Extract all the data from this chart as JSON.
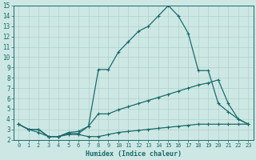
{
  "xlabel": "Humidex (Indice chaleur)",
  "xlim": [
    -0.5,
    23.5
  ],
  "ylim": [
    2,
    15
  ],
  "yticks": [
    2,
    3,
    4,
    5,
    6,
    7,
    8,
    9,
    10,
    11,
    12,
    13,
    14,
    15
  ],
  "xticks": [
    0,
    1,
    2,
    3,
    4,
    5,
    6,
    7,
    8,
    9,
    10,
    11,
    12,
    13,
    14,
    15,
    16,
    17,
    18,
    19,
    20,
    21,
    22,
    23
  ],
  "bg_color": "#cde8e4",
  "grid_color": "#b0d0cc",
  "line_color": "#1a6b6b",
  "line1_x": [
    0,
    1,
    2,
    3,
    4,
    5,
    6,
    7,
    8,
    9,
    10,
    11,
    12,
    13,
    14,
    15,
    16,
    17,
    18,
    19,
    20,
    21,
    22,
    23
  ],
  "line1_y": [
    3.5,
    3.0,
    3.0,
    2.3,
    2.3,
    2.7,
    2.8,
    3.3,
    8.8,
    8.8,
    10.5,
    11.5,
    12.5,
    13.0,
    14.0,
    15.0,
    14.0,
    12.3,
    8.7,
    8.7,
    5.5,
    4.7,
    4.0,
    3.5
  ],
  "line2_x": [
    0,
    1,
    2,
    3,
    4,
    5,
    6,
    7,
    8,
    9,
    10,
    11,
    12,
    13,
    14,
    15,
    16,
    17,
    18,
    19,
    20,
    21,
    22,
    23
  ],
  "line2_y": [
    3.5,
    3.0,
    3.0,
    2.3,
    2.3,
    2.6,
    2.6,
    3.3,
    4.5,
    4.5,
    4.9,
    5.2,
    5.5,
    5.8,
    6.1,
    6.4,
    6.7,
    7.0,
    7.3,
    7.5,
    7.8,
    5.5,
    4.0,
    3.5
  ],
  "line3_x": [
    0,
    1,
    2,
    3,
    4,
    5,
    6,
    7,
    8,
    9,
    10,
    11,
    12,
    13,
    14,
    15,
    16,
    17,
    18,
    19,
    20,
    21,
    22,
    23
  ],
  "line3_y": [
    3.5,
    3.0,
    2.7,
    2.3,
    2.3,
    2.5,
    2.5,
    2.3,
    2.3,
    2.5,
    2.7,
    2.8,
    2.9,
    3.0,
    3.1,
    3.2,
    3.3,
    3.4,
    3.5,
    3.5,
    3.5,
    3.5,
    3.5,
    3.5
  ]
}
